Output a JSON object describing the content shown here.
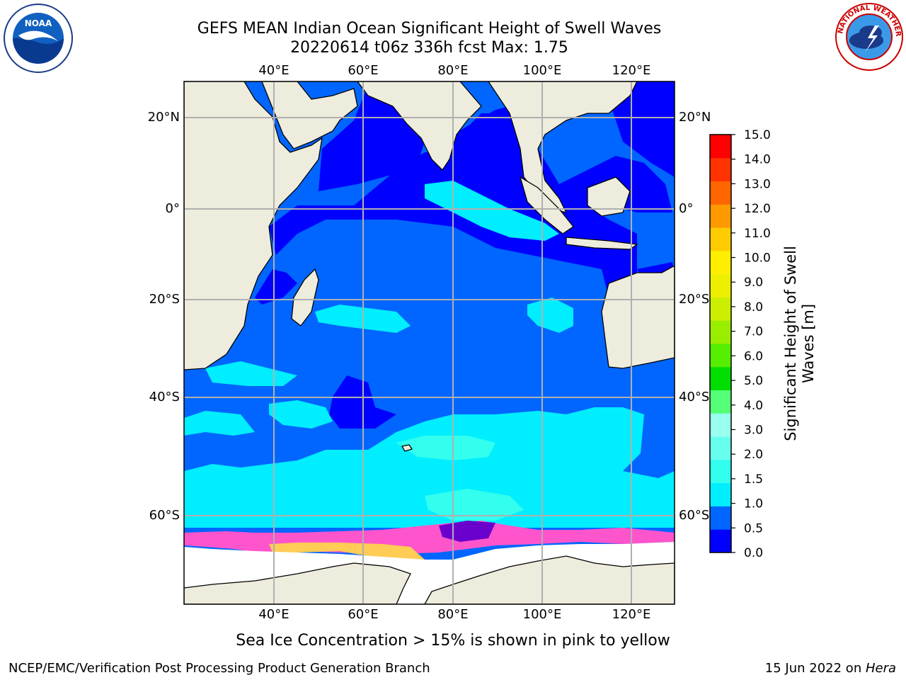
{
  "title_line1": "GEFS MEAN Indian Ocean Significant Height of Swell Waves",
  "title_line2": "20220614 t06z 336h fcst   Max: 1.75",
  "logo_left_text": "NOAA",
  "logo_right_text": "NATIONAL WEATHER SERVICE",
  "lon_ticks": [
    "40°E",
    "60°E",
    "80°E",
    "100°E",
    "120°E"
  ],
  "lat_ticks": [
    "20°N",
    "0°",
    "20°S",
    "40°S",
    "60°S"
  ],
  "colorbar": {
    "title": "Significant Height of Swell Waves [m]",
    "title_line1": "Significant Height of Swell",
    "title_line2": "Waves [m]",
    "levels": [
      "0.0",
      "0.5",
      "1.0",
      "1.5",
      "2.0",
      "3.0",
      "4.0",
      "5.0",
      "6.0",
      "7.0",
      "8.0",
      "9.0",
      "10.0",
      "11.0",
      "12.0",
      "13.0",
      "14.0",
      "15.0"
    ],
    "colors": [
      "#0000ff",
      "#0066ff",
      "#00eeff",
      "#33ffee",
      "#66ffee",
      "#99ffee",
      "#55ff77",
      "#00dd00",
      "#55ee00",
      "#99ee00",
      "#ccee00",
      "#eeee00",
      "#ffee00",
      "#ffcc00",
      "#ff9900",
      "#ff6600",
      "#ff3300",
      "#ff0000"
    ]
  },
  "footnote": "Sea Ice Concentration > 15% is shown in pink to yellow",
  "footer_left": "NCEP/EMC/Verification Post Processing Product Generation Branch",
  "footer_date": "15 Jun 2022 on ",
  "footer_machine": "Hera",
  "colors": {
    "land": "#eeecdd",
    "deep_blue": "#0000ff",
    "mid_blue": "#0066ff",
    "cyan": "#00eeff",
    "light_cyan": "#33ffee",
    "ice_pink": "#ff55cc",
    "ice_yellow": "#ffcc55"
  }
}
